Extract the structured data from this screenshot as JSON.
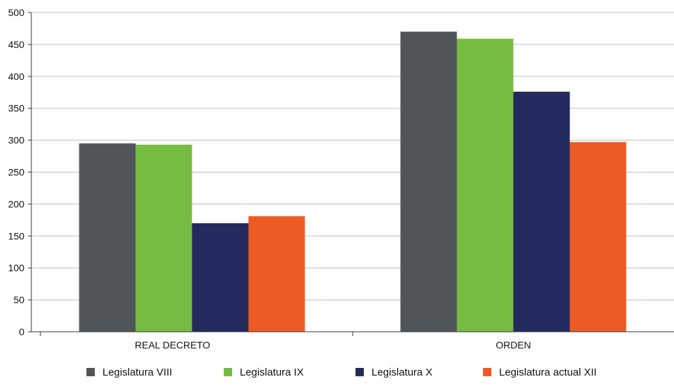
{
  "chart_data": {
    "type": "bar",
    "categories": [
      "REAL DECRETO",
      "ORDEN"
    ],
    "series": [
      {
        "name": "Legislatura VIII",
        "color": "#4f5559",
        "values": [
          295,
          470
        ]
      },
      {
        "name": "Legislatura IX",
        "color": "#76bc43",
        "values": [
          293,
          459
        ]
      },
      {
        "name": "Legislatura X",
        "color": "#232b5e",
        "values": [
          170,
          376
        ]
      },
      {
        "name": "Legislatura actual XII",
        "color": "#ed5b24",
        "values": [
          181,
          297
        ]
      }
    ],
    "ylim": [
      0,
      500
    ],
    "yticks": [
      "0",
      "50",
      "100",
      "150",
      "200",
      "250",
      "300",
      "350",
      "400",
      "450",
      "500"
    ],
    "grid": true,
    "legend_position": "bottom"
  }
}
